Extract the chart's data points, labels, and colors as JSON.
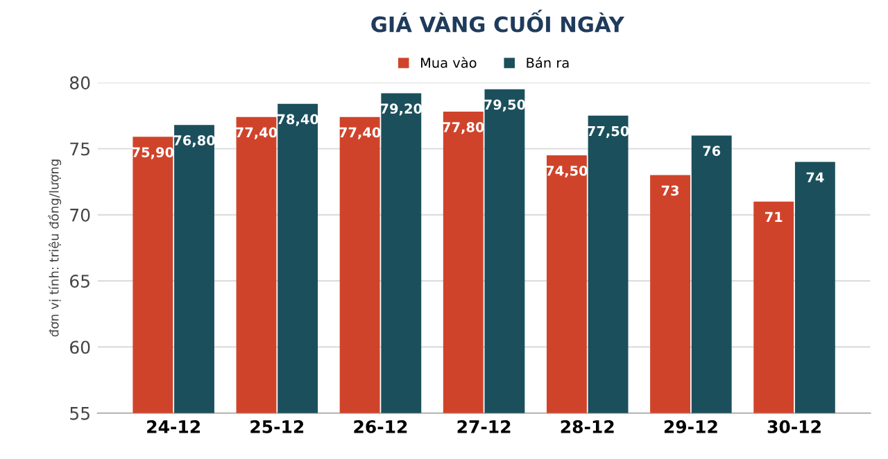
{
  "chart_data": {
    "type": "bar",
    "title": "GIÁ VÀNG CUỐI NGÀY",
    "ylabel": "đơn vị tính: triệu đồng/lượng",
    "categories": [
      "24-12",
      "25-12",
      "26-12",
      "27-12",
      "28-12",
      "29-12",
      "30-12"
    ],
    "series": [
      {
        "name": "Mua vào",
        "color": "#d0432b",
        "values": [
          75.9,
          77.4,
          77.4,
          77.8,
          74.5,
          73,
          71
        ],
        "value_labels": [
          "75,90",
          "77,40",
          "77,40",
          "77,80",
          "74,50",
          "73",
          "71"
        ]
      },
      {
        "name": "Bán ra",
        "color": "#1b4f5c",
        "values": [
          76.8,
          78.4,
          79.2,
          79.5,
          77.5,
          76,
          74
        ],
        "value_labels": [
          "76,80",
          "78,40",
          "79,20",
          "79,50",
          "77,50",
          "76",
          "74"
        ]
      }
    ],
    "ylim": [
      55,
      80
    ],
    "yticks": [
      55,
      60,
      65,
      70,
      75,
      80
    ],
    "grid": "y",
    "legend": "top"
  }
}
